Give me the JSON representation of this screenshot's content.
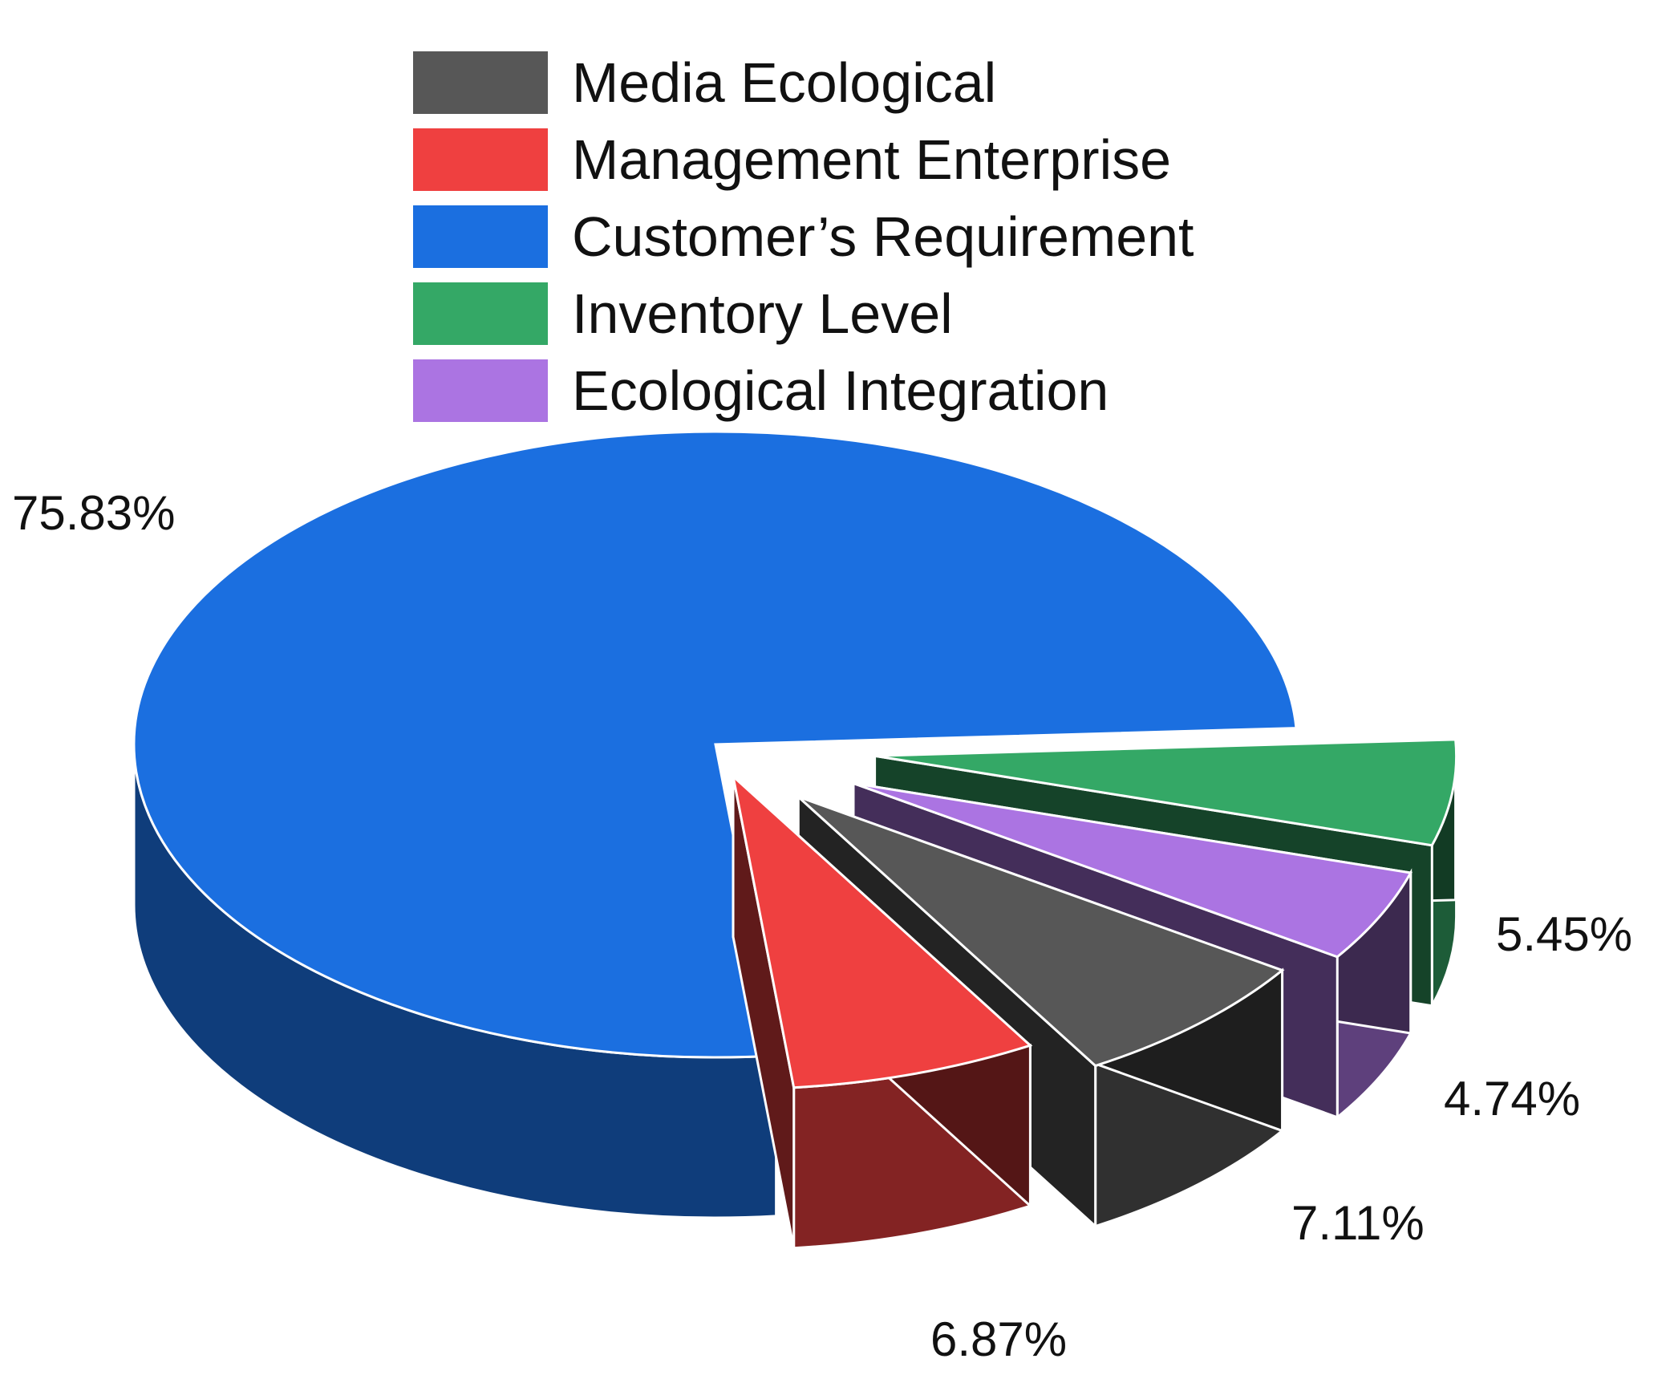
{
  "chart_data": {
    "type": "pie",
    "categories": [
      "Customer's Requirement",
      "Management Enterprise",
      "Media Ecological",
      "Ecological Integration",
      "Inventory Level"
    ],
    "values": [
      75.83,
      6.87,
      7.11,
      4.74,
      5.45
    ],
    "value_labels": [
      "75.83%",
      "6.87%",
      "7.11%",
      "4.74%",
      "5.45%"
    ],
    "colors": {
      "Media Ecological": "#575757",
      "Management Enterprise": "#ef4040",
      "Customer's Requirement": "#1b6fe0",
      "Inventory Level": "#34a866",
      "Ecological Integration": "#ab74e2"
    },
    "exploded": [
      "Management Enterprise",
      "Media Ecological",
      "Ecological Integration",
      "Inventory Level"
    ],
    "legend": {
      "position": "top",
      "items": [
        {
          "label": "Media Ecological",
          "color": "#575757"
        },
        {
          "label": "Management Enterprise",
          "color": "#ef4040"
        },
        {
          "label": "Customer’s Requirement",
          "color": "#1b6fe0"
        },
        {
          "label": "Inventory Level",
          "color": "#34a866"
        },
        {
          "label": "Ecological Integration",
          "color": "#ab74e2"
        }
      ]
    },
    "style": "3d-exploded-pie"
  }
}
